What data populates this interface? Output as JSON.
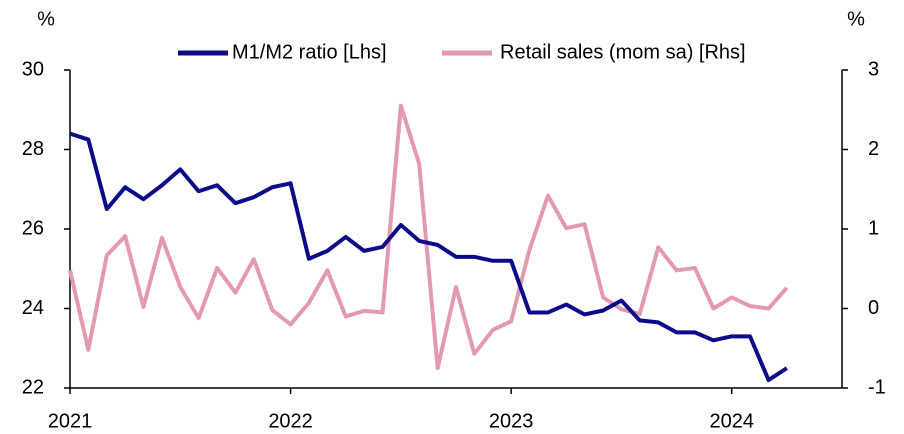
{
  "chart_data": {
    "type": "line",
    "y_unit_left": "%",
    "y_unit_right": "%",
    "x": [
      2021,
      2021.083,
      2021.167,
      2021.25,
      2021.333,
      2021.417,
      2021.5,
      2021.583,
      2021.667,
      2021.75,
      2021.833,
      2021.917,
      2022,
      2022.083,
      2022.167,
      2022.25,
      2022.333,
      2022.417,
      2022.5,
      2022.583,
      2022.667,
      2022.75,
      2022.833,
      2022.917,
      2023,
      2023.083,
      2023.167,
      2023.25,
      2023.333,
      2023.417,
      2023.5,
      2023.583,
      2023.667,
      2023.75,
      2023.833,
      2023.917,
      2024,
      2024.083,
      2024.167,
      2024.25
    ],
    "series": [
      {
        "name": "M1/M2 ratio [Lhs]",
        "color": "#0b0b8a",
        "axis": "y",
        "values": [
          28.4,
          28.25,
          26.5,
          27.05,
          26.75,
          27.1,
          27.5,
          26.95,
          27.1,
          26.65,
          26.8,
          27.05,
          27.15,
          25.25,
          25.45,
          25.8,
          25.45,
          25.55,
          26.1,
          25.7,
          25.6,
          25.3,
          25.3,
          25.2,
          25.2,
          23.9,
          23.9,
          24.1,
          23.85,
          23.95,
          24.2,
          23.7,
          23.65,
          23.4,
          23.4,
          23.2,
          23.3,
          23.3,
          22.2,
          22.5
        ]
      },
      {
        "name": "Retail sales (mom sa) [Rhs]",
        "color": "#e39aae",
        "axis": "y2",
        "values": [
          0.48,
          -0.52,
          0.67,
          0.91,
          0.02,
          0.89,
          0.27,
          -0.12,
          0.51,
          0.2,
          0.62,
          -0.02,
          -0.2,
          0.07,
          0.48,
          -0.1,
          -0.03,
          -0.05,
          2.55,
          1.82,
          -0.75,
          0.27,
          -0.57,
          -0.27,
          -0.16,
          0.74,
          1.42,
          1.01,
          1.06,
          0.14,
          -0.01,
          -0.07,
          0.77,
          0.48,
          0.51,
          0.0,
          0.14,
          0.03,
          0.0,
          0.26
        ]
      }
    ],
    "xlim": [
      2021,
      2024.5
    ],
    "xticks": [
      2021,
      2022,
      2023,
      2024
    ],
    "ylim": [
      22,
      30
    ],
    "yticks": [
      22,
      24,
      26,
      28,
      30
    ],
    "y2lim": [
      -1,
      3
    ],
    "y2ticks": [
      -1,
      0,
      1,
      2,
      3
    ]
  }
}
